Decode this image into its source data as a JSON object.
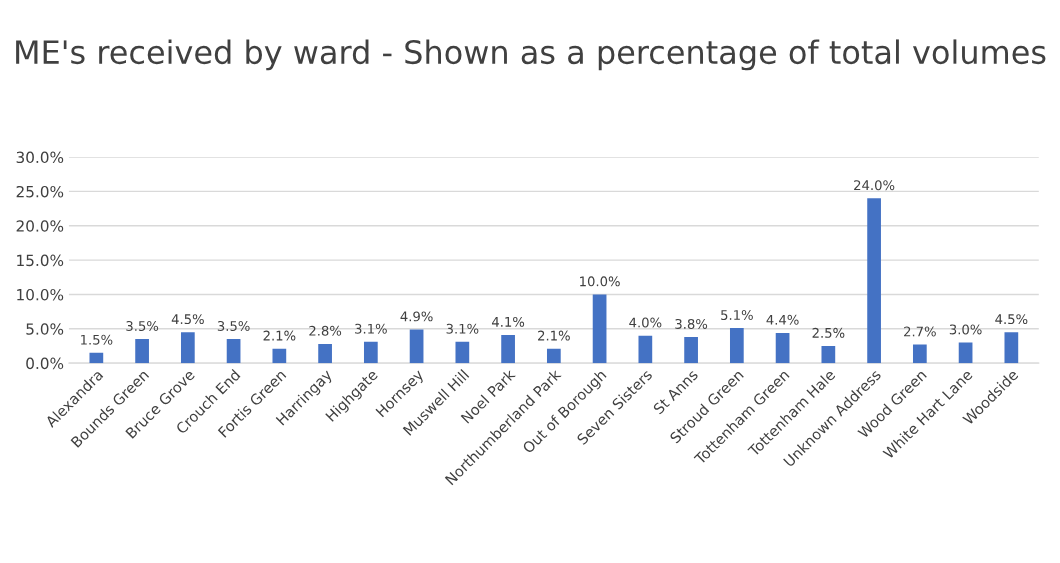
{
  "chart_data": {
    "type": "bar",
    "title": "ME's received by ward - Shown as a percentage of total volumes",
    "categories": [
      "Alexandra",
      "Bounds Green",
      "Bruce Grove",
      "Crouch End",
      "Fortis Green",
      "Harringay",
      "Highgate",
      "Hornsey",
      "Muswell Hill",
      "Noel Park",
      "Northumberland Park",
      "Out of Borough",
      "Seven Sisters",
      "St Anns",
      "Stroud Green",
      "Tottenham Green",
      "Tottenham Hale",
      "Unknown Address",
      "Wood Green",
      "White Hart Lane",
      "Woodside"
    ],
    "values": [
      1.5,
      3.5,
      4.5,
      3.5,
      2.1,
      2.8,
      3.1,
      4.9,
      3.1,
      4.1,
      2.1,
      10.0,
      4.0,
      3.8,
      5.1,
      4.4,
      2.5,
      24.0,
      2.7,
      3.0,
      4.5
    ],
    "value_labels": [
      "1.5%",
      "3.5%",
      "4.5%",
      "3.5%",
      "2.1%",
      "2.8%",
      "3.1%",
      "4.9%",
      "3.1%",
      "4.1%",
      "2.1%",
      "10.0%",
      "4.0%",
      "3.8%",
      "5.1%",
      "4.4%",
      "2.5%",
      "24.0%",
      "2.7%",
      "3.0%",
      "4.5%"
    ],
    "color": "#4472c4",
    "ylim": [
      0,
      30
    ],
    "yticks": [
      {
        "value": 0,
        "label": "0.0%"
      },
      {
        "value": 5,
        "label": "5.0%"
      },
      {
        "value": 10,
        "label": "10.0%"
      },
      {
        "value": 15,
        "label": "15.0%"
      },
      {
        "value": 20,
        "label": "20.0%"
      },
      {
        "value": 25,
        "label": "25.0%"
      },
      {
        "value": 30,
        "label": "30.0%"
      }
    ],
    "grid": "y"
  }
}
